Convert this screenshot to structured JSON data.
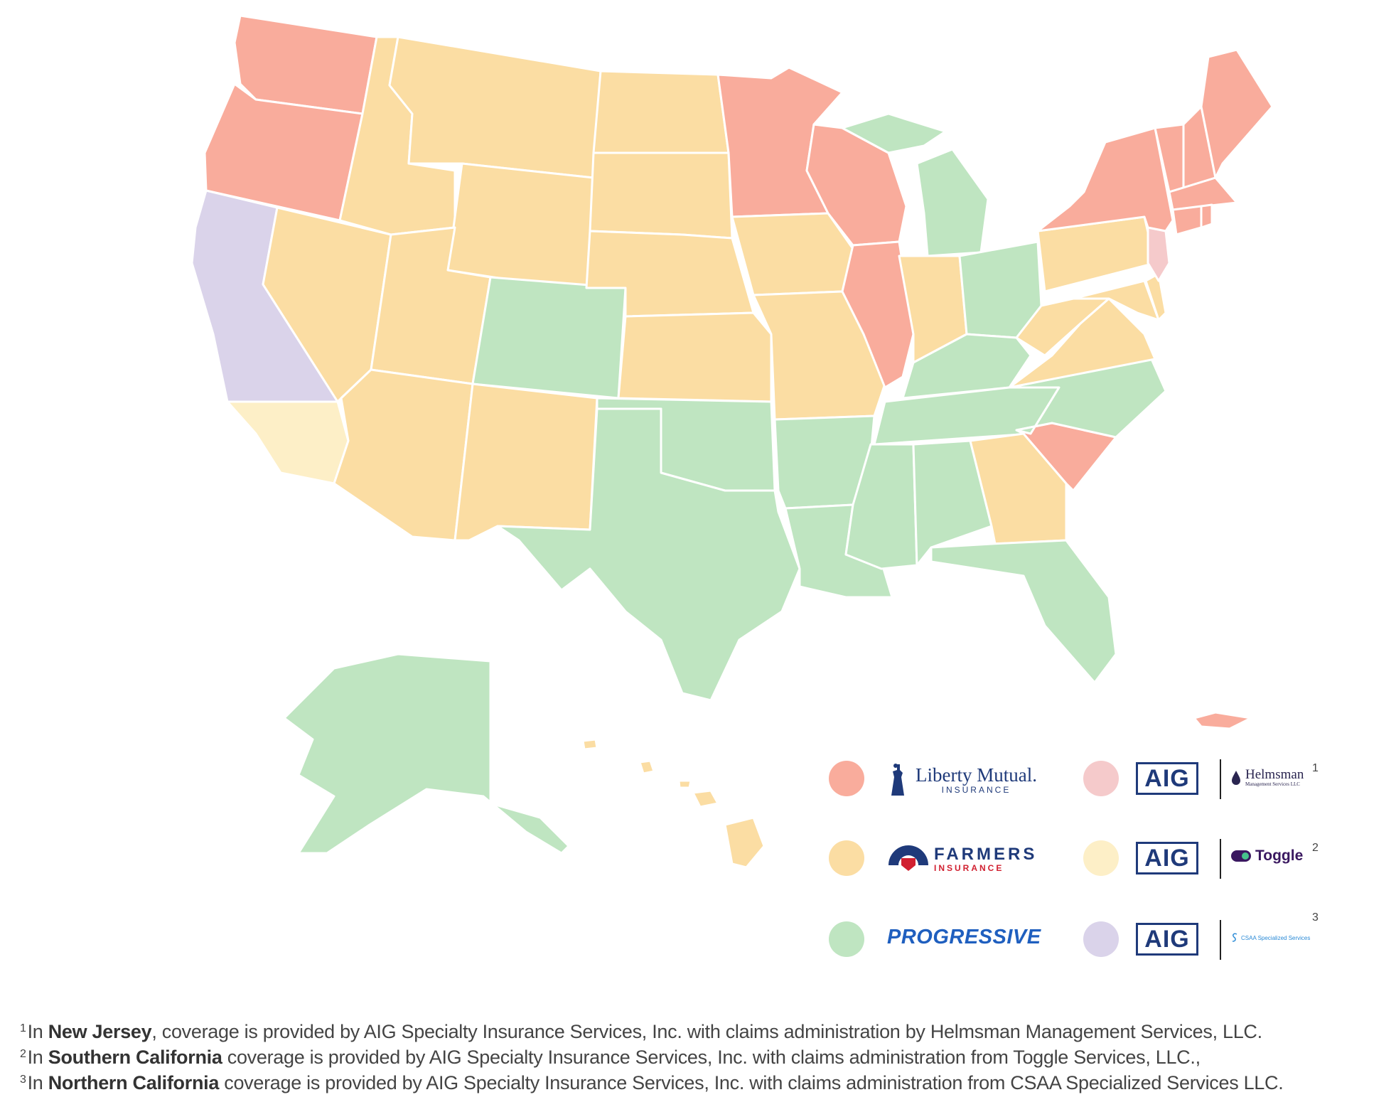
{
  "colors": {
    "liberty_mutual": "#F9AC9C",
    "farmers": "#FBDDA3",
    "progressive": "#BFE5C1",
    "aig_helmsman": "#F5CACB",
    "aig_toggle": "#FDEFC7",
    "aig_csaa": "#DAD3EA"
  },
  "legend": [
    {
      "provider": "liberty_mutual",
      "logo_text": "Liberty Mutual.",
      "logo_subtext": "INSURANCE",
      "icon": "statue-of-liberty-icon"
    },
    {
      "provider": "farmers",
      "logo_text": "FARMERS",
      "logo_subtext": "INSURANCE",
      "icon": "farmers-shield-icon"
    },
    {
      "provider": "progressive",
      "logo_text": "PROGRESSIVE"
    },
    {
      "provider": "aig_helmsman",
      "logo_text": "AIG",
      "partner_text": "Helmsman",
      "partner_subtext": "Management Services LLC",
      "footnote_ref": "1",
      "icon": "helmsman-drop-icon"
    },
    {
      "provider": "aig_toggle",
      "logo_text": "AIG",
      "partner_text": "Toggle",
      "footnote_ref": "2",
      "icon": "toggle-switch-icon"
    },
    {
      "provider": "aig_csaa",
      "logo_text": "AIG",
      "partner_text": "CSAA Specialized Services",
      "footnote_ref": "3",
      "icon": "csaa-logo-icon"
    }
  ],
  "footnotes": [
    {
      "ref": "1",
      "pre": "In ",
      "bold": "New Jersey",
      "post": ", coverage is provided by AIG Specialty Insurance Services, Inc. with claims administration by Helmsman Management Services, LLC."
    },
    {
      "ref": "2",
      "pre": "In ",
      "bold": "Southern California",
      "post": " coverage is provided by AIG Specialty Insurance Services, Inc. with claims administration from Toggle Services, LLC.,"
    },
    {
      "ref": "3",
      "pre": "In ",
      "bold": "Northern California",
      "post": " coverage is provided by AIG Specialty Insurance Services, Inc. with claims administration from CSAA Specialized Services LLC."
    }
  ],
  "states": {
    "liberty_mutual": [
      "WA",
      "OR",
      "MN",
      "WI",
      "IL",
      "NY",
      "VT",
      "NH",
      "ME",
      "MA",
      "CT",
      "RI",
      "SC",
      "PR"
    ],
    "farmers": [
      "ID",
      "MT",
      "ND",
      "SD",
      "WY",
      "NE",
      "IA",
      "NV",
      "UT",
      "AZ",
      "NM",
      "KS",
      "MO",
      "IN",
      "PA",
      "WV",
      "VA",
      "MD",
      "DE",
      "GA",
      "HI"
    ],
    "progressive": [
      "CO",
      "OK",
      "TX",
      "AR",
      "LA",
      "MS",
      "AL",
      "TN",
      "KY",
      "OH",
      "MI",
      "NC",
      "FL",
      "AK"
    ],
    "aig_helmsman": [
      "NJ"
    ],
    "aig_toggle": [
      "Southern California"
    ],
    "aig_csaa": [
      "Northern California"
    ]
  }
}
